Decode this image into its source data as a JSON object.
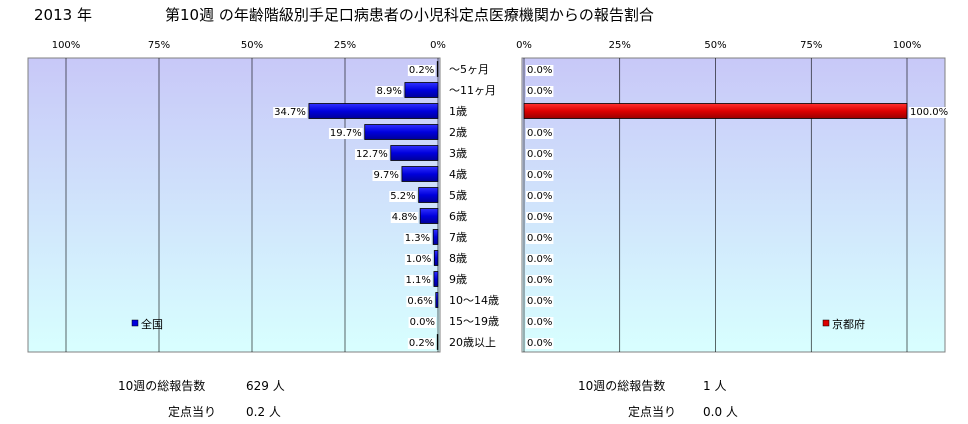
{
  "header": {
    "year": "2013 年",
    "title": "第10週 の年齢階級別手足口病患者の小児科定点医療機関からの報告割合"
  },
  "colors": {
    "national": "#0000dd",
    "kyoto": "#dd0000",
    "plot_bg_top": "#c8c8f8",
    "plot_bg_bottom": "#d8ffff"
  },
  "chart_data": [
    {
      "type": "bar",
      "orientation": "horizontal",
      "direction": "right-to-left",
      "categories": [
        "～5ヶ月",
        "～11ヶ月",
        "1歳",
        "2歳",
        "3歳",
        "4歳",
        "5歳",
        "6歳",
        "7歳",
        "8歳",
        "9歳",
        "10～14歳",
        "15～19歳",
        "20歳以上"
      ],
      "series": [
        {
          "name": "全国",
          "values": [
            0.2,
            8.9,
            34.7,
            19.7,
            12.7,
            9.7,
            5.2,
            4.8,
            1.3,
            1.0,
            1.1,
            0.6,
            0.0,
            0.2
          ]
        }
      ],
      "data_labels": [
        "0.2%",
        "8.9%",
        "34.7%",
        "19.7%",
        "12.7%",
        "9.7%",
        "5.2%",
        "4.8%",
        "1.3%",
        "1.0%",
        "1.1%",
        "0.6%",
        "0.0%",
        "0.2%"
      ],
      "xlim": [
        0,
        100
      ],
      "x_ticks": [
        "100%",
        "75%",
        "50%",
        "25%",
        "0%"
      ],
      "legend": "bottom-left",
      "grid": true
    },
    {
      "type": "bar",
      "orientation": "horizontal",
      "direction": "left-to-right",
      "categories": [
        "～5ヶ月",
        "～11ヶ月",
        "1歳",
        "2歳",
        "3歳",
        "4歳",
        "5歳",
        "6歳",
        "7歳",
        "8歳",
        "9歳",
        "10～14歳",
        "15～19歳",
        "20歳以上"
      ],
      "series": [
        {
          "name": "京都府",
          "values": [
            0.0,
            0.0,
            100.0,
            0.0,
            0.0,
            0.0,
            0.0,
            0.0,
            0.0,
            0.0,
            0.0,
            0.0,
            0.0,
            0.0
          ]
        }
      ],
      "data_labels": [
        "0.0%",
        "0.0%",
        "100.0%",
        "0.0%",
        "0.0%",
        "0.0%",
        "0.0%",
        "0.0%",
        "0.0%",
        "0.0%",
        "0.0%",
        "0.0%",
        "0.0%",
        "0.0%"
      ],
      "xlim": [
        0,
        100
      ],
      "x_ticks": [
        "0%",
        "25%",
        "50%",
        "75%",
        "100%"
      ],
      "legend": "bottom-right",
      "grid": true
    }
  ],
  "footer": {
    "left": {
      "reports_label": "10週の総報告数",
      "reports_value": "629 人",
      "per_site_label": "定点当り",
      "per_site_value": "0.2 人"
    },
    "right": {
      "reports_label": "10週の総報告数",
      "reports_value": "1 人",
      "per_site_label": "定点当り",
      "per_site_value": "0.0 人"
    }
  }
}
